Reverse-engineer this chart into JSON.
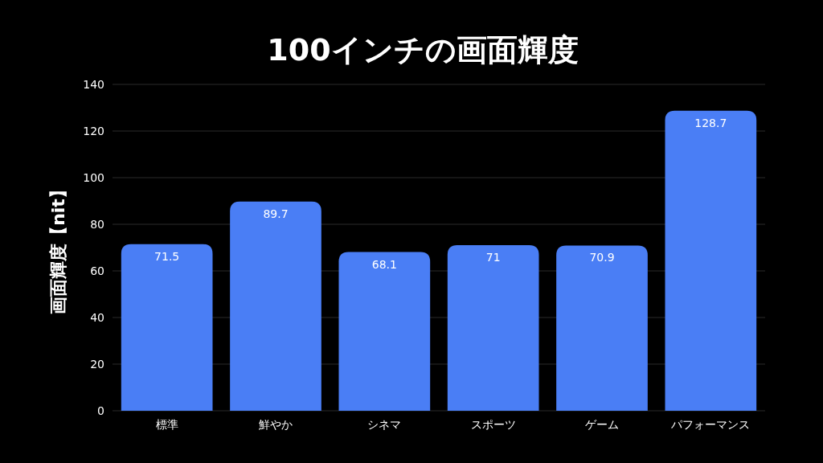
{
  "chart_data": {
    "type": "bar",
    "title": "100インチの画面輝度",
    "ylabel": "画面輝度【nit】",
    "categories": [
      "標準",
      "鮮やか",
      "シネマ",
      "スポーツ",
      "ゲーム",
      "パフォーマンス"
    ],
    "values": [
      71.5,
      89.7,
      68.1,
      71,
      70.9,
      128.7
    ],
    "color": "#4a7ef5",
    "ylim": [
      0,
      140
    ],
    "yticks": [
      0,
      20,
      40,
      60,
      80,
      100,
      120,
      140
    ],
    "grid": "y",
    "data_labels": true
  }
}
